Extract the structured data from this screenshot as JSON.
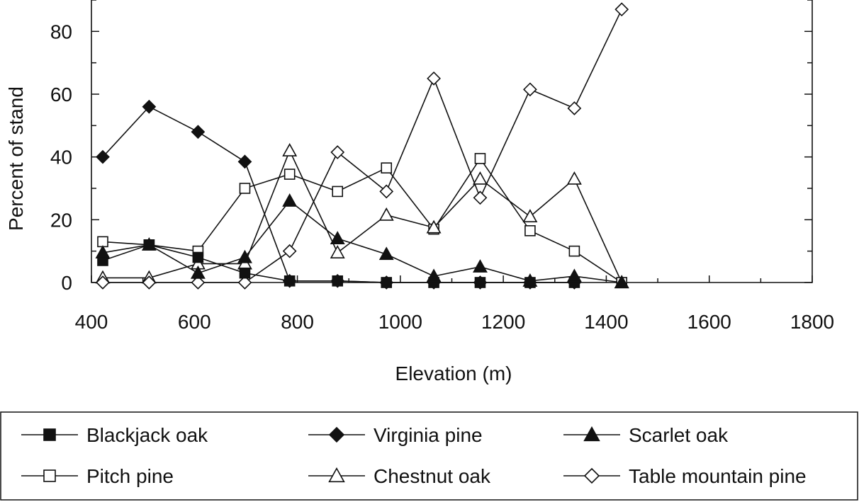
{
  "chart_data": {
    "type": "line",
    "title": "",
    "xlabel": "Elevation (m)",
    "ylabel": "Percent of stand",
    "xlim": [
      400,
      1800
    ],
    "ylim": [
      0,
      90
    ],
    "x_ticks": [
      400,
      600,
      800,
      1000,
      1200,
      1400,
      1600,
      1800
    ],
    "y_ticks": [
      0,
      20,
      40,
      60,
      80
    ],
    "grid": false,
    "legend_placement": "bottom",
    "series": [
      {
        "name": "Blackjack oak",
        "marker": "square",
        "fill": "filled",
        "points": [
          [
            422,
            7
          ],
          [
            512,
            12
          ],
          [
            607,
            8
          ],
          [
            698,
            3
          ],
          [
            785,
            0.5
          ],
          [
            878,
            0.5
          ],
          [
            973,
            0
          ],
          [
            1065,
            0
          ],
          [
            1155,
            0
          ],
          [
            1252,
            0
          ],
          [
            1338,
            0
          ]
        ]
      },
      {
        "name": "Virginia pine",
        "marker": "diamond",
        "fill": "filled",
        "points": [
          [
            422,
            40
          ],
          [
            512,
            56
          ],
          [
            607,
            48
          ],
          [
            698,
            38.5
          ],
          [
            785,
            0.5
          ],
          [
            878,
            0.5
          ],
          [
            973,
            0
          ],
          [
            1065,
            0
          ],
          [
            1155,
            0
          ],
          [
            1252,
            0
          ],
          [
            1338,
            0
          ]
        ]
      },
      {
        "name": "Scarlet oak",
        "marker": "triangle",
        "fill": "filled",
        "points": [
          [
            422,
            9.5
          ],
          [
            512,
            12
          ],
          [
            607,
            3
          ],
          [
            698,
            8
          ],
          [
            785,
            26
          ],
          [
            878,
            14
          ],
          [
            973,
            9
          ],
          [
            1065,
            2
          ],
          [
            1155,
            5
          ],
          [
            1252,
            0.5
          ],
          [
            1338,
            2
          ],
          [
            1430,
            0
          ]
        ]
      },
      {
        "name": "Pitch pine",
        "marker": "square",
        "fill": "open",
        "points": [
          [
            422,
            13
          ],
          [
            512,
            12
          ],
          [
            607,
            10
          ],
          [
            698,
            30
          ],
          [
            785,
            34.5
          ],
          [
            878,
            29
          ],
          [
            973,
            36.5
          ],
          [
            1065,
            17
          ],
          [
            1155,
            39.5
          ],
          [
            1252,
            16.5
          ],
          [
            1338,
            10
          ],
          [
            1430,
            0
          ]
        ]
      },
      {
        "name": "Chestnut oak",
        "marker": "triangle",
        "fill": "open",
        "points": [
          [
            422,
            1.5
          ],
          [
            512,
            1.5
          ],
          [
            607,
            6
          ],
          [
            698,
            6
          ],
          [
            785,
            42
          ],
          [
            878,
            9.5
          ],
          [
            973,
            21.5
          ],
          [
            1065,
            17.5
          ],
          [
            1155,
            33
          ],
          [
            1252,
            21
          ],
          [
            1338,
            33
          ],
          [
            1430,
            0
          ]
        ]
      },
      {
        "name": "Table mountain pine",
        "marker": "diamond",
        "fill": "open",
        "points": [
          [
            422,
            0
          ],
          [
            512,
            0
          ],
          [
            607,
            0
          ],
          [
            698,
            0
          ],
          [
            785,
            10
          ],
          [
            878,
            41.5
          ],
          [
            973,
            29
          ],
          [
            1065,
            65
          ],
          [
            1155,
            27
          ],
          [
            1252,
            61.5
          ],
          [
            1338,
            55.5
          ],
          [
            1430,
            87
          ]
        ]
      }
    ]
  }
}
